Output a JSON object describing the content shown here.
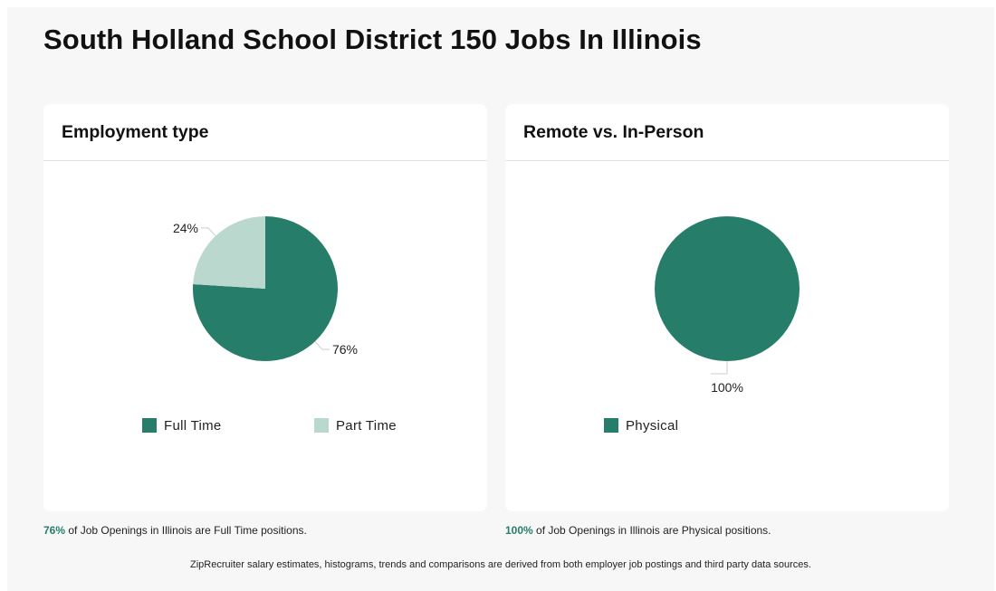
{
  "page": {
    "title": "South Holland School District 150 Jobs In Illinois",
    "footer": "ZipRecruiter salary estimates, histograms, trends and comparisons are derived from both employer job postings and third party data sources."
  },
  "colors": {
    "dark_green": "#267e6a",
    "light_green": "#bad8ce"
  },
  "chart_data": [
    {
      "type": "pie",
      "title": "Employment type",
      "categories": [
        "Full Time",
        "Part Time"
      ],
      "values": [
        76,
        24
      ],
      "labels": [
        "76%",
        "24%"
      ],
      "colors": [
        "#267e6a",
        "#bad8ce"
      ],
      "legend_position": "bottom"
    },
    {
      "type": "pie",
      "title": "Remote vs. In-Person",
      "categories": [
        "Physical"
      ],
      "values": [
        100
      ],
      "labels": [
        "100%"
      ],
      "colors": [
        "#267e6a"
      ],
      "legend_position": "bottom"
    }
  ],
  "captions": [
    {
      "pct": "76%",
      "text": " of Job Openings in Illinois are Full Time positions."
    },
    {
      "pct": "100%",
      "text": " of Job Openings in Illinois are Physical positions."
    }
  ]
}
